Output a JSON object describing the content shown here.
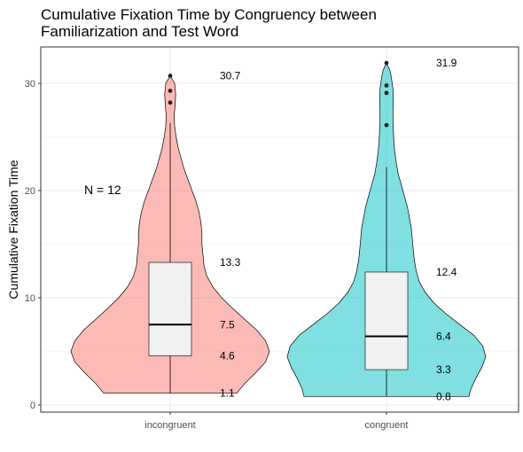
{
  "chart_data": {
    "type": "violin",
    "title": "Cumulative Fixation Time by Congruency between Familiarization and Test Word",
    "title_lines": [
      "Cumulative Fixation Time by Congruency between",
      "Familiarization and Test Word"
    ],
    "xlabel": "",
    "ylabel": "Cumulative Fixation Time",
    "ylim": [
      -0.7,
      33.2
    ],
    "yticks": [
      0,
      10,
      20,
      30
    ],
    "grid": true,
    "legend": "none",
    "annotation": "N =  12",
    "categories": [
      "incongruent",
      "congruent"
    ],
    "groups": [
      {
        "name": "incongruent",
        "color": "#F8766D",
        "min": 1.1,
        "q1": 4.6,
        "median": 7.5,
        "q3": 13.3,
        "max": 30.7,
        "whisker_upper": 26.3,
        "outliers": [
          28.2,
          29.3,
          30.7
        ],
        "labels": [
          "30.7",
          "13.3",
          "7.5",
          "4.6",
          "1.1"
        ],
        "label_values": [
          30.7,
          13.3,
          7.5,
          4.6,
          1.1
        ],
        "density": [
          [
            1.1,
            0.67
          ],
          [
            2,
            0.75
          ],
          [
            3,
            0.86
          ],
          [
            4,
            0.96
          ],
          [
            5,
            1.0
          ],
          [
            6,
            0.96
          ],
          [
            7,
            0.87
          ],
          [
            8,
            0.75
          ],
          [
            9,
            0.63
          ],
          [
            10,
            0.52
          ],
          [
            11,
            0.43
          ],
          [
            12,
            0.37
          ],
          [
            13,
            0.34
          ],
          [
            14,
            0.33
          ],
          [
            15,
            0.32
          ],
          [
            16,
            0.32
          ],
          [
            17,
            0.31
          ],
          [
            18,
            0.29
          ],
          [
            19,
            0.26
          ],
          [
            20,
            0.22
          ],
          [
            21,
            0.18
          ],
          [
            22,
            0.14
          ],
          [
            23,
            0.11
          ],
          [
            24,
            0.08
          ],
          [
            25,
            0.06
          ],
          [
            26,
            0.045
          ],
          [
            27,
            0.04
          ],
          [
            28,
            0.05
          ],
          [
            29,
            0.055
          ],
          [
            30,
            0.045
          ],
          [
            30.7,
            0.0
          ]
        ]
      },
      {
        "name": "congruent",
        "color": "#00BFC4",
        "min": 0.8,
        "q1": 3.3,
        "median": 6.4,
        "q3": 12.4,
        "max": 31.9,
        "whisker_upper": 22.2,
        "outliers": [
          26.1,
          29.1,
          29.8,
          31.9
        ],
        "labels": [
          "31.9",
          "12.4",
          "6.4",
          "3.3",
          "0.8"
        ],
        "label_values": [
          31.9,
          12.4,
          6.4,
          3.3,
          0.8
        ],
        "density": [
          [
            0.8,
            0.83
          ],
          [
            1.5,
            0.85
          ],
          [
            2.5,
            0.9
          ],
          [
            3.5,
            0.96
          ],
          [
            4.5,
            1.0
          ],
          [
            5.5,
            0.97
          ],
          [
            6.5,
            0.88
          ],
          [
            7.5,
            0.74
          ],
          [
            8.5,
            0.6
          ],
          [
            9.5,
            0.48
          ],
          [
            10.5,
            0.39
          ],
          [
            11.5,
            0.33
          ],
          [
            12.5,
            0.3
          ],
          [
            13.5,
            0.28
          ],
          [
            14.5,
            0.27
          ],
          [
            15.5,
            0.26
          ],
          [
            16.5,
            0.25
          ],
          [
            17.5,
            0.23
          ],
          [
            18.5,
            0.21
          ],
          [
            19.5,
            0.18
          ],
          [
            20.5,
            0.15
          ],
          [
            21.5,
            0.12
          ],
          [
            22.5,
            0.1
          ],
          [
            23.5,
            0.085
          ],
          [
            24.5,
            0.075
          ],
          [
            25.5,
            0.07
          ],
          [
            26.5,
            0.065
          ],
          [
            27.5,
            0.065
          ],
          [
            28.5,
            0.07
          ],
          [
            29.5,
            0.065
          ],
          [
            30.5,
            0.05
          ],
          [
            31.2,
            0.035
          ],
          [
            31.9,
            0.0
          ]
        ]
      }
    ]
  }
}
